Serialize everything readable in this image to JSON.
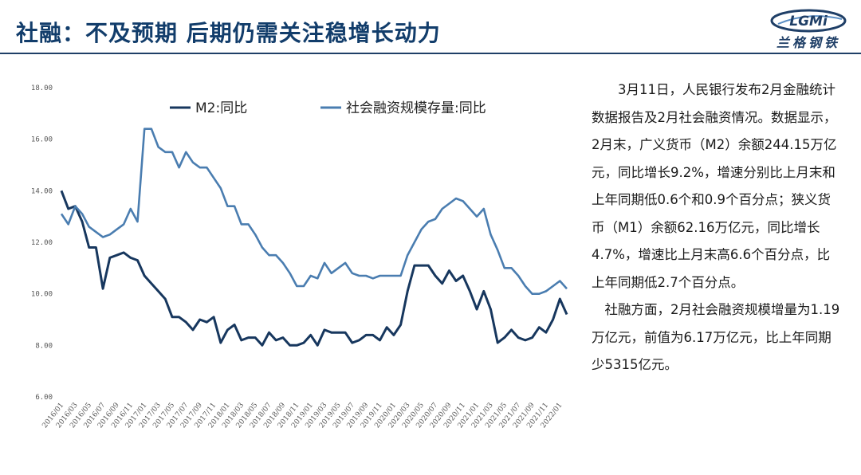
{
  "header": {
    "title": "社融：不及预期  后期仍需关注稳增长动力",
    "logo_letters": "LGMi",
    "logo_text": "兰格钢铁"
  },
  "colors": {
    "title": "#123d6b",
    "m2": "#17375e",
    "tsf": "#4a7db0",
    "rule": "#1f3f67"
  },
  "article": {
    "paragraphs": [
      "3月11日，人民银行发布2月金融统计数据报告及2月社会融资情况。数据显示，2月末，广义货币（M2）余额244.15万亿元，同比增长9.2%，增速分别比上月末和上年同期低0.6个和0.9个百分点；狭义货币（M1）余额62.16万亿元，同比增长4.7%，增速比上月末高6.6个百分点，比上年同期低2.7个百分点。",
      "社融方面，2月社会融资规模增量为1.19万亿元，前值为6.17万亿元，比上年同期少5315亿元。"
    ]
  },
  "chart_data": {
    "type": "line",
    "x_start": "2016/01",
    "x": [
      "2016/01",
      "2016/02",
      "2016/03",
      "2016/04",
      "2016/05",
      "2016/06",
      "2016/07",
      "2016/08",
      "2016/09",
      "2016/10",
      "2016/11",
      "2016/12",
      "2017/01",
      "2017/02",
      "2017/03",
      "2017/04",
      "2017/05",
      "2017/06",
      "2017/07",
      "2017/08",
      "2017/09",
      "2017/10",
      "2017/11",
      "2017/12",
      "2018/01",
      "2018/02",
      "2018/03",
      "2018/04",
      "2018/05",
      "2018/06",
      "2018/07",
      "2018/08",
      "2018/09",
      "2018/10",
      "2018/11",
      "2018/12",
      "2019/01",
      "2019/02",
      "2019/03",
      "2019/04",
      "2019/05",
      "2019/06",
      "2019/07",
      "2019/08",
      "2019/09",
      "2019/10",
      "2019/11",
      "2019/12",
      "2020/01",
      "2020/02",
      "2020/03",
      "2020/04",
      "2020/05",
      "2020/06",
      "2020/07",
      "2020/08",
      "2020/09",
      "2020/10",
      "2020/11",
      "2020/12",
      "2021/01",
      "2021/02",
      "2021/03",
      "2021/04",
      "2021/05",
      "2021/06",
      "2021/07",
      "2021/08",
      "2021/09",
      "2021/10",
      "2021/11",
      "2021/12",
      "2022/01",
      "2022/02"
    ],
    "xtick_labels": [
      "2016/01",
      "2016/03",
      "2016/05",
      "2016/07",
      "2016/09",
      "2016/11",
      "2017/01",
      "2017/03",
      "2017/05",
      "2017/07",
      "2017/09",
      "2017/11",
      "2018/01",
      "2018/03",
      "2018/05",
      "2018/07",
      "2018/09",
      "2018/11",
      "2019/01",
      "2019/03",
      "2019/05",
      "2019/07",
      "2019/09",
      "2019/11",
      "2020/01",
      "2020/03",
      "2020/05",
      "2020/07",
      "2020/09",
      "2020/11",
      "2021/01",
      "2021/03",
      "2021/05",
      "2021/07",
      "2021/09",
      "2021/11",
      "2022/01"
    ],
    "ylim": [
      6,
      18
    ],
    "yticks": [
      "6.00",
      "8.00",
      "10.00",
      "12.00",
      "14.00",
      "16.00",
      "18.00"
    ],
    "grid": false,
    "legend_position": "top",
    "series": [
      {
        "name": "M2:同比",
        "values": [
          14.0,
          13.3,
          13.4,
          12.8,
          11.8,
          11.8,
          10.2,
          11.4,
          11.5,
          11.6,
          11.4,
          11.3,
          10.7,
          10.4,
          10.1,
          9.8,
          9.1,
          9.1,
          8.9,
          8.6,
          9.0,
          8.9,
          9.1,
          8.1,
          8.6,
          8.8,
          8.2,
          8.3,
          8.3,
          8.0,
          8.5,
          8.2,
          8.3,
          8.0,
          8.0,
          8.1,
          8.4,
          8.0,
          8.6,
          8.5,
          8.5,
          8.5,
          8.1,
          8.2,
          8.4,
          8.4,
          8.2,
          8.7,
          8.4,
          8.8,
          10.1,
          11.1,
          11.1,
          11.1,
          10.7,
          10.4,
          10.9,
          10.5,
          10.7,
          10.1,
          9.4,
          10.1,
          9.4,
          8.1,
          8.3,
          8.6,
          8.3,
          8.2,
          8.3,
          8.7,
          8.5,
          9.0,
          9.8,
          9.2
        ]
      },
      {
        "name": "社会融资规模存量:同比",
        "values": [
          13.1,
          12.7,
          13.4,
          13.1,
          12.6,
          12.4,
          12.2,
          12.3,
          12.5,
          12.7,
          13.3,
          12.8,
          16.4,
          16.4,
          15.7,
          15.5,
          15.5,
          14.9,
          15.5,
          15.1,
          14.9,
          14.9,
          14.5,
          14.1,
          13.4,
          13.4,
          12.7,
          12.7,
          12.3,
          11.8,
          11.5,
          11.5,
          11.2,
          10.8,
          10.3,
          10.3,
          10.7,
          10.6,
          11.2,
          10.8,
          11.0,
          11.2,
          10.8,
          10.7,
          10.7,
          10.6,
          10.7,
          10.7,
          10.7,
          10.7,
          11.5,
          12.0,
          12.5,
          12.8,
          12.9,
          13.3,
          13.5,
          13.7,
          13.6,
          13.3,
          13.0,
          13.3,
          12.3,
          11.7,
          11.0,
          11.0,
          10.7,
          10.3,
          10.0,
          10.0,
          10.1,
          10.3,
          10.5,
          10.2
        ]
      }
    ]
  }
}
